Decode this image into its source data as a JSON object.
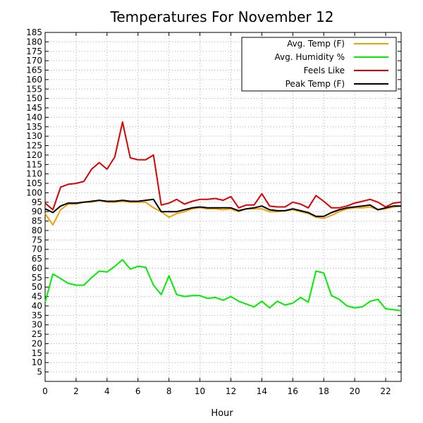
{
  "chart_data": {
    "type": "line",
    "title": "Temperatures For November 12",
    "xlabel": "Hour",
    "ylabel": "",
    "xlim": [
      0,
      23
    ],
    "ylim": [
      0,
      185
    ],
    "xticks": [
      0,
      2,
      4,
      6,
      8,
      10,
      12,
      14,
      16,
      18,
      20,
      22
    ],
    "yticks": [
      5,
      10,
      15,
      20,
      25,
      30,
      35,
      40,
      45,
      50,
      55,
      60,
      65,
      70,
      75,
      80,
      85,
      90,
      95,
      100,
      105,
      110,
      115,
      120,
      125,
      130,
      135,
      140,
      145,
      150,
      155,
      160,
      165,
      170,
      175,
      180,
      185
    ],
    "grid": true,
    "legend_position": "top-right",
    "x": [
      0,
      0.5,
      1,
      1.5,
      2,
      2.5,
      3,
      3.5,
      4,
      4.5,
      5,
      5.5,
      6,
      6.5,
      7,
      7.5,
      8,
      8.5,
      9,
      9.5,
      10,
      10.5,
      11,
      11.5,
      12,
      12.5,
      13,
      13.5,
      14,
      14.5,
      15,
      15.5,
      16,
      16.5,
      17,
      17.5,
      18,
      18.5,
      19,
      19.5,
      20,
      20.5,
      21,
      21.5,
      22,
      22.5,
      23
    ],
    "series": [
      {
        "name": "Avg. Temp (F)",
        "color": "#f0a000",
        "values": [
          89,
          83,
          91,
          94,
          94,
          95,
          95,
          96,
          95,
          95,
          95.5,
          95,
          95,
          95,
          92,
          90,
          87,
          89,
          90,
          91.5,
          92,
          91.5,
          91.5,
          91,
          91.5,
          90,
          91.5,
          91.5,
          91.5,
          90,
          90,
          90.5,
          91,
          90,
          89,
          87,
          86.5,
          88,
          90,
          91.5,
          92,
          92,
          92.5,
          91,
          91.5,
          92.5,
          93
        ]
      },
      {
        "name": "Avg. Humidity %",
        "color": "#00ee00",
        "values": [
          42,
          57,
          54.5,
          52,
          51,
          51,
          55,
          58.5,
          58,
          61,
          64.5,
          59.5,
          61,
          60.5,
          51,
          46,
          56,
          46,
          45,
          45.5,
          45.5,
          44,
          44.5,
          43,
          45,
          42.5,
          41,
          39.5,
          42.5,
          39,
          42.5,
          40.5,
          41.5,
          44.5,
          42,
          58.5,
          57.5,
          45.5,
          43.5,
          40,
          39,
          39.5,
          42.5,
          43.5,
          38.5,
          38,
          37.5
        ]
      },
      {
        "name": "Feels Like",
        "color": "#dd0000",
        "values": [
          94.5,
          91,
          103,
          104.5,
          105,
          106,
          112.5,
          116,
          112.5,
          119,
          137.5,
          118.5,
          117.5,
          117.5,
          120,
          93.5,
          94.5,
          96.5,
          94,
          95.5,
          96.5,
          96.5,
          97,
          96,
          98,
          92,
          93.5,
          93.5,
          99.5,
          93,
          92.5,
          92.5,
          95,
          94,
          92,
          98.5,
          95.5,
          92,
          92,
          93,
          94.5,
          95.5,
          96.5,
          95,
          92.5,
          94.5,
          95
        ]
      },
      {
        "name": "Peak Temp (F)",
        "color": "#000000",
        "values": [
          91.5,
          89.5,
          93,
          94.5,
          94.5,
          95,
          95.5,
          96,
          95.5,
          95.5,
          96,
          95.5,
          95.5,
          96,
          96.5,
          90,
          90,
          90,
          91,
          92,
          92.5,
          92,
          92,
          92,
          92,
          90.5,
          91.5,
          92,
          93,
          91,
          90.5,
          90.5,
          91.5,
          90.5,
          89.5,
          87.5,
          87.5,
          89.5,
          91,
          92,
          92.5,
          93,
          93.5,
          91,
          92,
          93,
          93
        ]
      }
    ]
  }
}
